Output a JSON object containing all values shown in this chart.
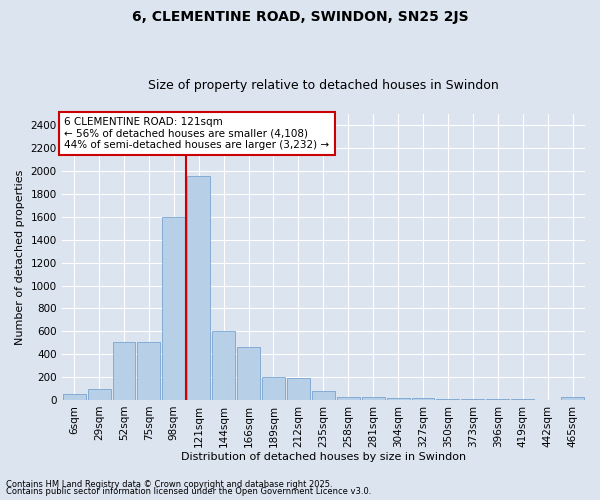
{
  "title": "6, CLEMENTINE ROAD, SWINDON, SN25 2JS",
  "subtitle": "Size of property relative to detached houses in Swindon",
  "xlabel": "Distribution of detached houses by size in Swindon",
  "ylabel": "Number of detached properties",
  "footer1": "Contains HM Land Registry data © Crown copyright and database right 2025.",
  "footer2": "Contains public sector information licensed under the Open Government Licence v3.0.",
  "annotation_title": "6 CLEMENTINE ROAD: 121sqm",
  "annotation_line1": "← 56% of detached houses are smaller (4,108)",
  "annotation_line2": "44% of semi-detached houses are larger (3,232) →",
  "bar_labels": [
    "6sqm",
    "29sqm",
    "52sqm",
    "75sqm",
    "98sqm",
    "121sqm",
    "144sqm",
    "166sqm",
    "189sqm",
    "212sqm",
    "235sqm",
    "258sqm",
    "281sqm",
    "304sqm",
    "327sqm",
    "350sqm",
    "373sqm",
    "396sqm",
    "419sqm",
    "442sqm",
    "465sqm"
  ],
  "bar_values": [
    50,
    100,
    510,
    510,
    1600,
    1960,
    600,
    460,
    200,
    195,
    75,
    30,
    30,
    20,
    15,
    10,
    10,
    5,
    5,
    0,
    30
  ],
  "bar_color": "#b8cfe8",
  "bar_edgecolor": "#6699cc",
  "vline_index": 5,
  "vline_color": "#cc0000",
  "ylim": [
    0,
    2500
  ],
  "yticks": [
    0,
    200,
    400,
    600,
    800,
    1000,
    1200,
    1400,
    1600,
    1800,
    2000,
    2200,
    2400
  ],
  "bg_color": "#dce4f0",
  "grid_color": "#ffffff",
  "annotation_box_facecolor": "#ffffff",
  "annotation_box_edgecolor": "#cc0000",
  "title_fontsize": 10,
  "subtitle_fontsize": 9,
  "axis_fontsize": 8,
  "tick_fontsize": 7.5,
  "annotation_fontsize": 7.5,
  "footer_fontsize": 6
}
